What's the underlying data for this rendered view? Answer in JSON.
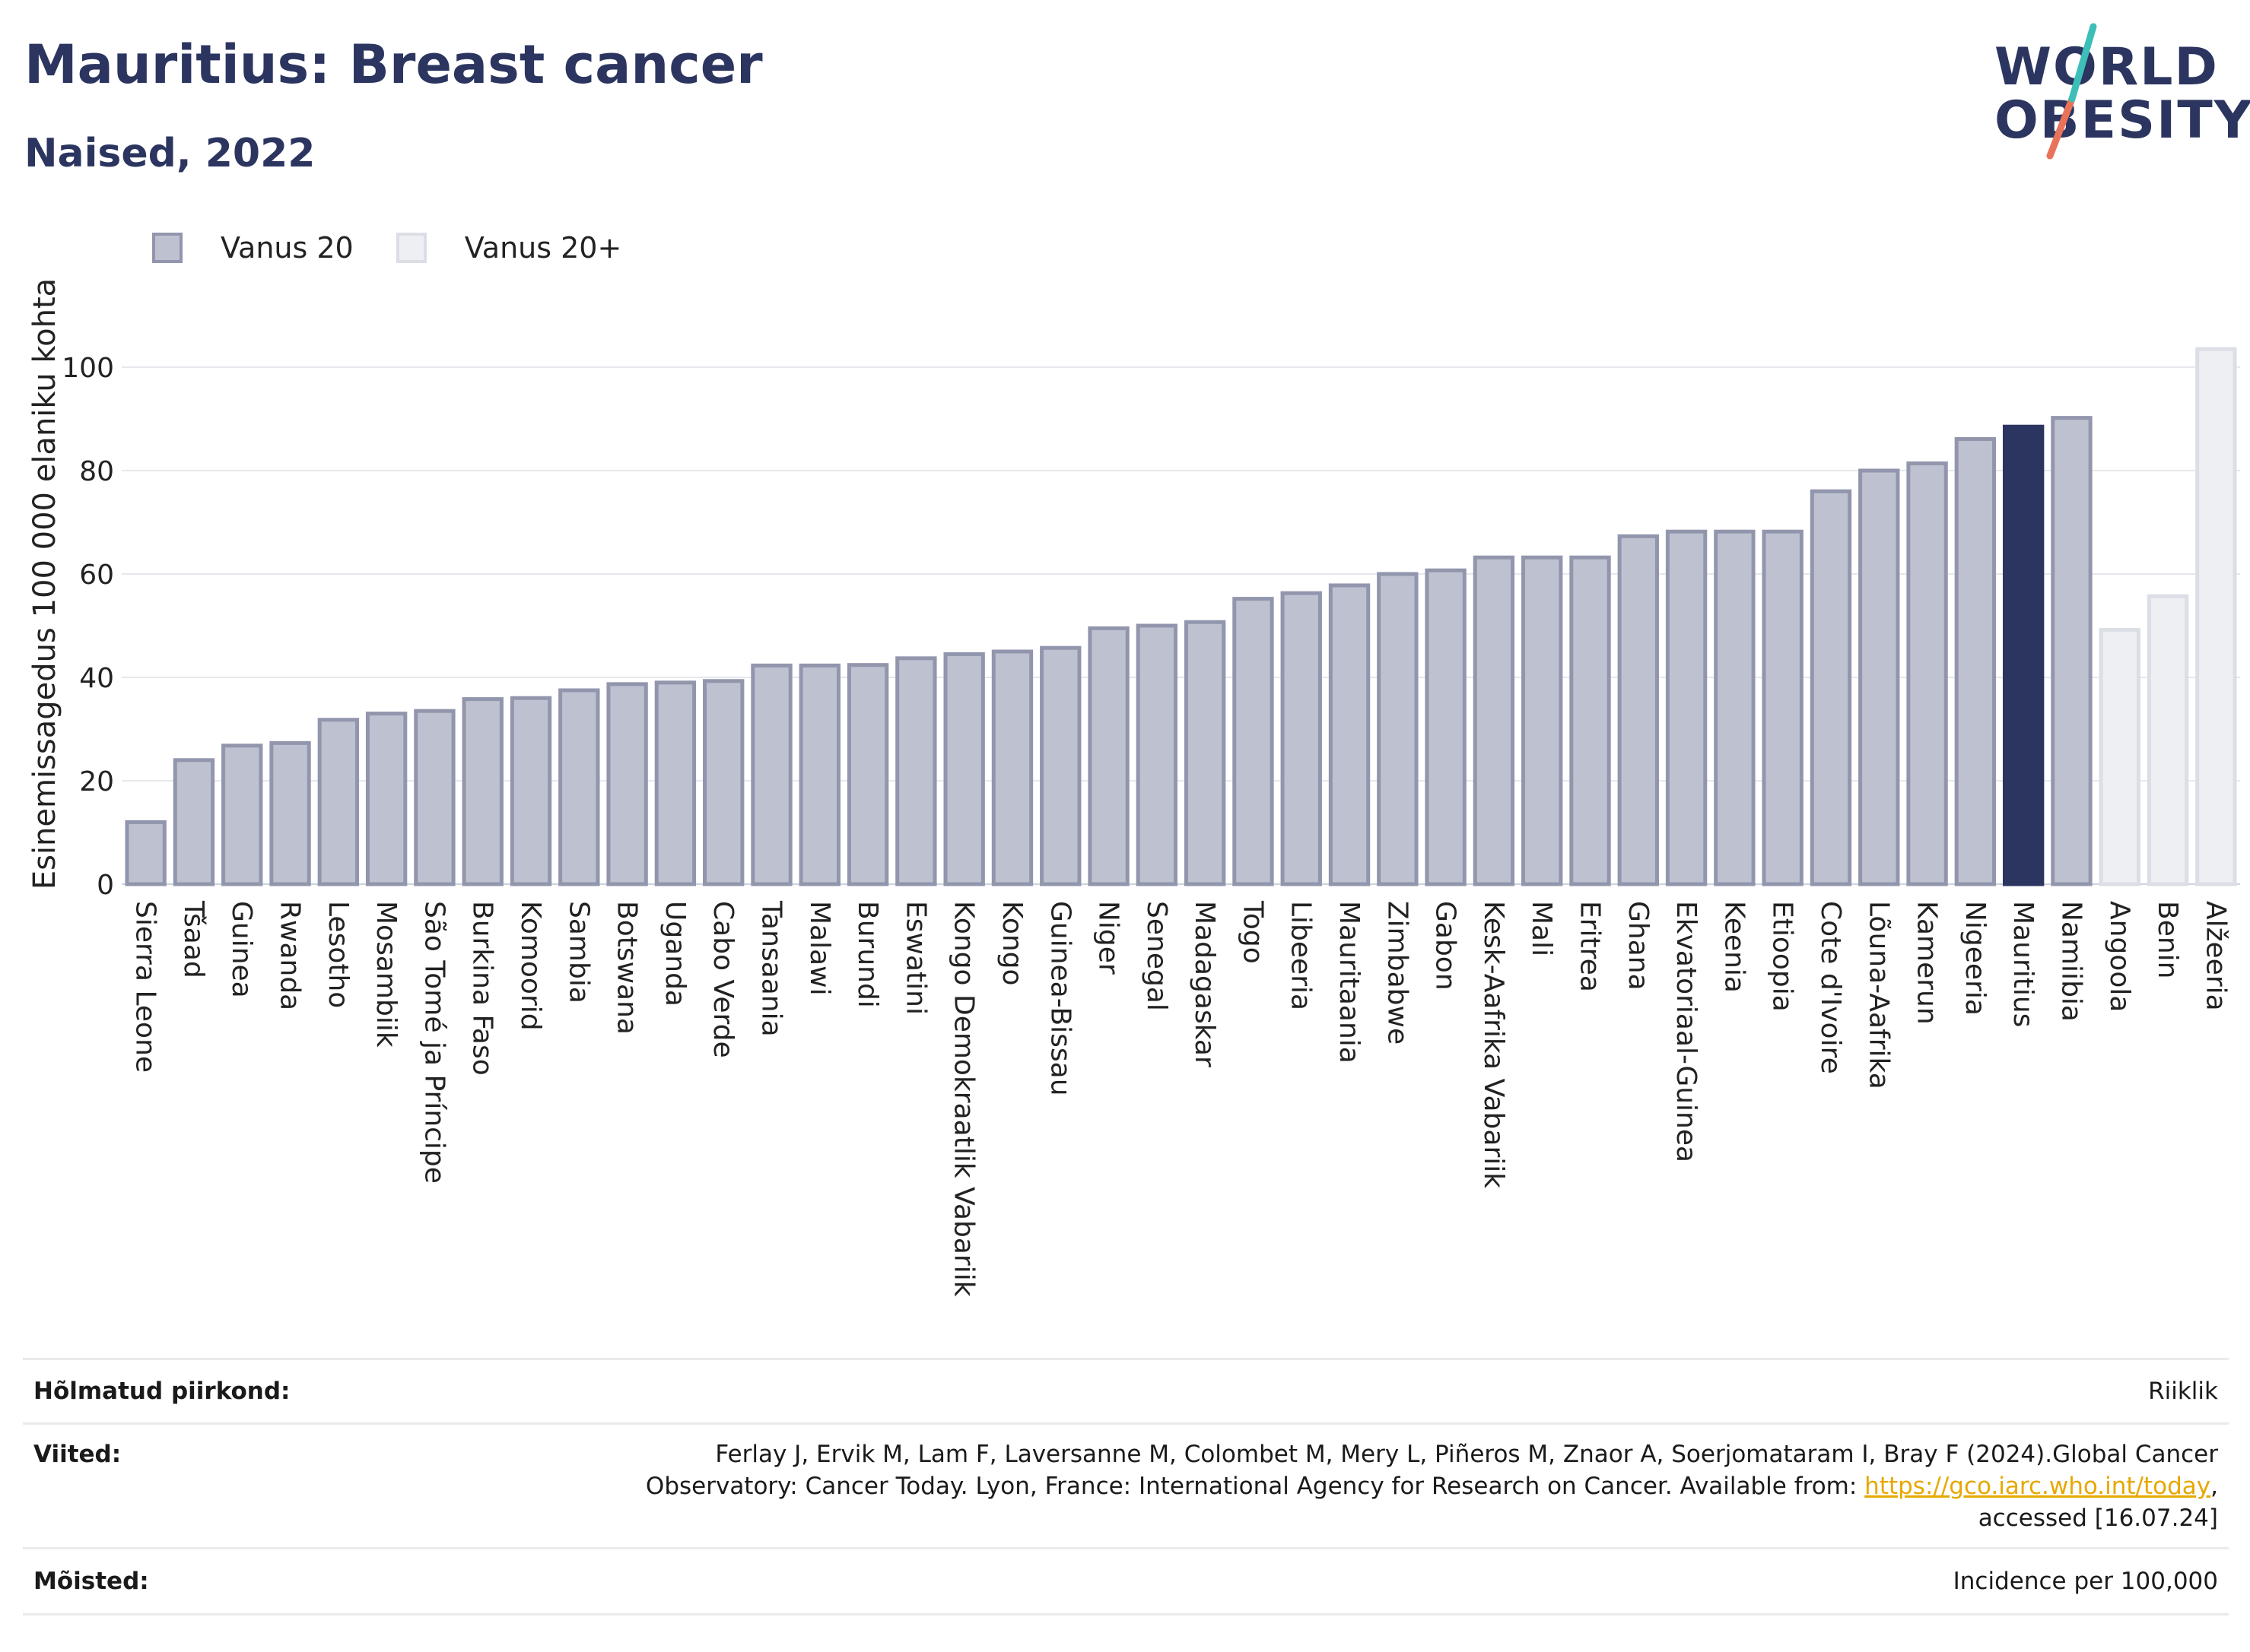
{
  "header": {
    "title": "Mauritius: Breast cancer",
    "subtitle": "Naised, 2022"
  },
  "logo": {
    "line1": "WORLD",
    "line2": "OBESITY",
    "colors": {
      "text": "#2b3560",
      "slash_top": "#3dbfb8",
      "slash_bottom": "#e8735a"
    }
  },
  "legend": [
    {
      "label": "Vanus 20",
      "fill": "#bec1d0",
      "stroke": "#9296ad"
    },
    {
      "label": "Vanus 20+",
      "fill": "#eeeff3",
      "stroke": "#dcdee6"
    }
  ],
  "chart_data": {
    "type": "bar",
    "ylabel": "Esinemissagedus 100 000 elaniku kohta",
    "ylim": [
      0,
      110
    ],
    "yticks": [
      0,
      20,
      40,
      60,
      80,
      100
    ],
    "grid": true,
    "highlight": "Mauritius",
    "colors": {
      "Vanus 20": "#bec1d0",
      "Vanus 20+": "#eeeff3",
      "highlight": "#2b3560"
    },
    "categories": [
      "Sierra Leone",
      "Tšaad",
      "Guinea",
      "Rwanda",
      "Lesotho",
      "Mosambiik",
      "São Tomé ja Príncipe",
      "Burkina Faso",
      "Komoorid",
      "Sambia",
      "Botswana",
      "Uganda",
      "Cabo Verde",
      "Tansaania",
      "Malawi",
      "Burundi",
      "Eswatini",
      "Kongo Demokraatlik Vabariik",
      "Kongo",
      "Guinea-Bissau",
      "Niger",
      "Senegal",
      "Madagaskar",
      "Togo",
      "Libeeria",
      "Mauritaania",
      "Zimbabwe",
      "Gabon",
      "Kesk-Aafrika Vabariik",
      "Mali",
      "Eritrea",
      "Ghana",
      "Ekvatoriaal-Guinea",
      "Keenia",
      "Etioopia",
      "Cote d'Ivoire",
      "Lõuna-Aafrika",
      "Kamerun",
      "Nigeeria",
      "Mauritius",
      "Namiibia",
      "Angoola",
      "Benin",
      "Alžeeria"
    ],
    "values": [
      12,
      24,
      26.8,
      27.3,
      31.8,
      33,
      33.5,
      35.8,
      36,
      37.5,
      38.7,
      39,
      39.3,
      42.3,
      42.3,
      42.4,
      43.7,
      44.5,
      45,
      45.7,
      49.5,
      50,
      50.7,
      55.2,
      56.3,
      57.8,
      60,
      60.7,
      63.2,
      63.2,
      63.2,
      67.3,
      68.2,
      68.2,
      68.2,
      76,
      80,
      81.4,
      86.1,
      88.5,
      90.2,
      49.2,
      55.7,
      103.5
    ],
    "series_by_category": [
      "Vanus 20",
      "Vanus 20",
      "Vanus 20",
      "Vanus 20",
      "Vanus 20",
      "Vanus 20",
      "Vanus 20",
      "Vanus 20",
      "Vanus 20",
      "Vanus 20",
      "Vanus 20",
      "Vanus 20",
      "Vanus 20",
      "Vanus 20",
      "Vanus 20",
      "Vanus 20",
      "Vanus 20",
      "Vanus 20",
      "Vanus 20",
      "Vanus 20",
      "Vanus 20",
      "Vanus 20",
      "Vanus 20",
      "Vanus 20",
      "Vanus 20",
      "Vanus 20",
      "Vanus 20",
      "Vanus 20",
      "Vanus 20",
      "Vanus 20",
      "Vanus 20",
      "Vanus 20",
      "Vanus 20",
      "Vanus 20",
      "Vanus 20",
      "Vanus 20",
      "Vanus 20",
      "Vanus 20",
      "Vanus 20",
      "Vanus 20",
      "Vanus 20",
      "Vanus 20+",
      "Vanus 20+",
      "Vanus 20+"
    ]
  },
  "footer": {
    "rows": [
      {
        "label": "Hõlmatud piirkond:",
        "lines": [
          "Riiklik"
        ]
      },
      {
        "label": "Viited:",
        "lines": [
          "Ferlay J, Ervik M, Lam F, Laversanne M, Colombet M, Mery L, Piñeros M, Znaor A, Soerjomataram I, Bray F (2024).Global Cancer",
          "Observatory: Cancer Today. Lyon, France: International Agency for Research on Cancer. Available from: "
        ],
        "link": "https://gco.iarc.who.int/today",
        "after_link": ",",
        "last_line": "accessed [16.07.24]"
      },
      {
        "label": "Mõisted:",
        "lines": [
          "Incidence per 100,000"
        ]
      }
    ]
  }
}
